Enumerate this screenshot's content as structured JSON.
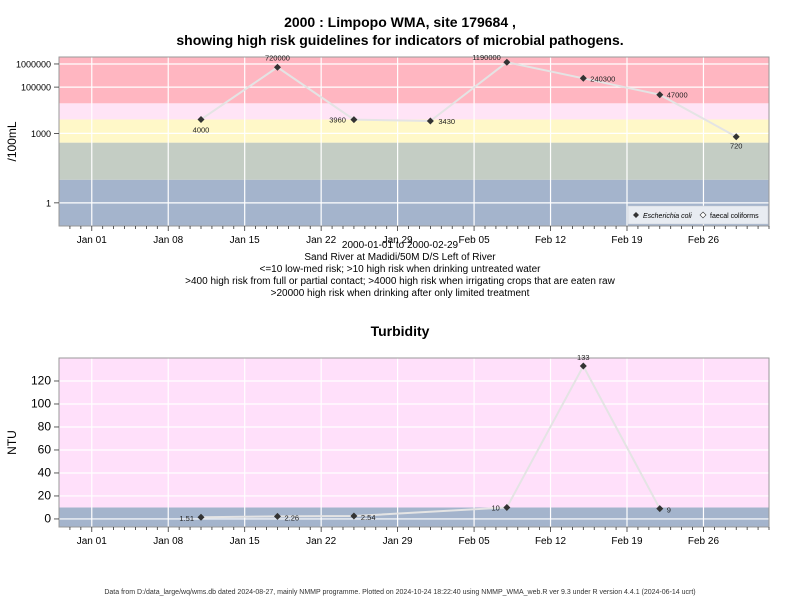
{
  "colors": {
    "high_risk": "#ffb6c1",
    "light_risk": "#ffe4f6",
    "yellow": "#fff8c8",
    "grey_green": "#c4cdc4",
    "blue": "#a4b4cc",
    "turb_bg": "#ffe0fa",
    "turb_blue": "#a4b4cc",
    "line": "#e0e0e0",
    "point": "#333333",
    "grid": "#ffffff"
  },
  "chart1": {
    "title_line1": "2000 : Limpopo WMA, site 179684 ,",
    "title_line2": "showing high risk guidelines for indicators of microbial pathogens.",
    "subtitle_lines": [
      "2000-01-01 to 2000-02-29",
      "Sand River at Madidi/50M D/S Left of River",
      "<=10 low-med risk; >10 high risk when drinking untreated water",
      ">400 high risk from full or partial contact; >4000 high risk when irrigating crops that are eaten raw",
      ">20000 high risk when drinking after only limited treatment"
    ]
  },
  "chart2": {
    "title": "Turbidity"
  },
  "footer": "Data from D:/data_large/wq/wms.db dated 2024-08-27, mainly NMMP programme. Plotted on 2024-10-24 18:22:40 using NMMP_WMA_web.R ver 9.3 under R version 4.4.1 (2024-06-14 ucrt)",
  "chart_data": [
    {
      "type": "line",
      "title": "2000 : Limpopo WMA, site 179684 , showing high risk guidelines for indicators of microbial pathogens.",
      "ylabel": "/100mL",
      "yscale": "log",
      "ylim": [
        0.1,
        2000000
      ],
      "xlim": [
        "1999-12-29",
        "2000-03-03"
      ],
      "x_ticks": [
        "Jan 01",
        "Jan 08",
        "Jan 15",
        "Jan 22",
        "Jan 29",
        "Feb 05",
        "Feb 12",
        "Feb 19",
        "Feb 26"
      ],
      "x_tick_dates": [
        "2000-01-01",
        "2000-01-08",
        "2000-01-15",
        "2000-01-22",
        "2000-01-29",
        "2000-02-05",
        "2000-02-12",
        "2000-02-19",
        "2000-02-26"
      ],
      "y_ticks": [
        1,
        1000,
        100000,
        1000000
      ],
      "y_tick_labels": [
        "1",
        "1000",
        "100000",
        "1000000"
      ],
      "bands": [
        {
          "from": 0.1,
          "to": 10,
          "color": "#a4b4cc"
        },
        {
          "from": 10,
          "to": 400,
          "color": "#c4cdc4"
        },
        {
          "from": 400,
          "to": 4000,
          "color": "#fff8c8"
        },
        {
          "from": 4000,
          "to": 20000,
          "color": "#ffe4f6"
        },
        {
          "from": 20000,
          "to": 2000000,
          "color": "#ffb6c1"
        }
      ],
      "series": [
        {
          "name": "Escherichia coli",
          "x": [
            "2000-01-11",
            "2000-01-18",
            "2000-01-25",
            "2000-02-01",
            "2000-02-08",
            "2000-02-15",
            "2000-02-22",
            "2000-02-29"
          ],
          "values": [
            4000,
            720000,
            3960,
            3430,
            1190000,
            240300,
            47000,
            720
          ],
          "labels": [
            "4000",
            "720000",
            "3960",
            "3430",
            "1190000",
            "240300",
            "47000",
            "720"
          ]
        }
      ],
      "legend": [
        {
          "name": "Escherichia coli",
          "marker": "diamond-filled"
        },
        {
          "name": "faecal coliforms",
          "marker": "diamond-open"
        }
      ],
      "legend_position": "bottom-right",
      "grid": true
    },
    {
      "type": "line",
      "title": "Turbidity",
      "ylabel": "NTU",
      "ylim": [
        -7,
        140
      ],
      "xlim": [
        "1999-12-29",
        "2000-03-03"
      ],
      "x_ticks": [
        "Jan 01",
        "Jan 08",
        "Jan 15",
        "Jan 22",
        "Jan 29",
        "Feb 05",
        "Feb 12",
        "Feb 19",
        "Feb 26"
      ],
      "x_tick_dates": [
        "2000-01-01",
        "2000-01-08",
        "2000-01-15",
        "2000-01-22",
        "2000-01-29",
        "2000-02-05",
        "2000-02-12",
        "2000-02-19",
        "2000-02-26"
      ],
      "y_ticks": [
        0,
        20,
        40,
        60,
        80,
        100,
        120
      ],
      "bands": [
        {
          "from": -7,
          "to": 10,
          "color": "#a4b4cc"
        },
        {
          "from": 10,
          "to": 140,
          "color": "#ffe0fa"
        }
      ],
      "series": [
        {
          "name": "",
          "x": [
            "2000-01-11",
            "2000-01-18",
            "2000-01-25",
            "2000-02-08",
            "2000-02-15",
            "2000-02-22"
          ],
          "values": [
            1.51,
            2.26,
            2.54,
            10,
            133,
            9
          ],
          "labels": [
            "1.51",
            "2.26",
            "2.54",
            "10",
            "133",
            "9"
          ]
        }
      ],
      "grid": true
    }
  ]
}
